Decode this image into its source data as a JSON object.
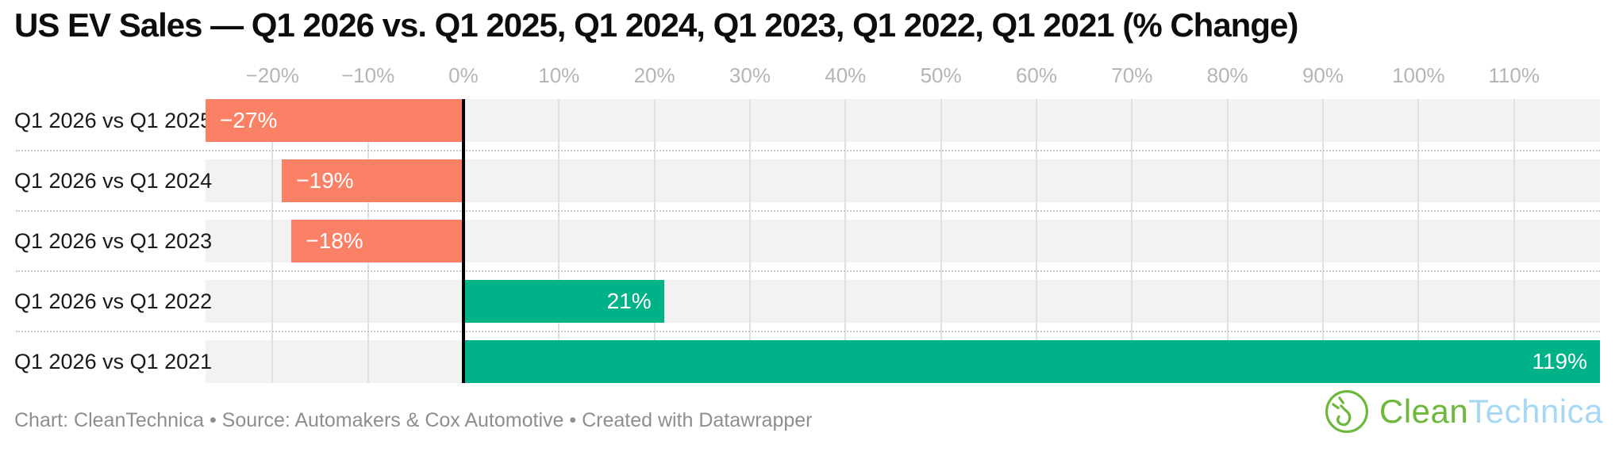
{
  "chart_data": {
    "type": "bar",
    "orientation": "horizontal",
    "title": "US EV Sales — Q1 2026 vs. Q1 2025, Q1 2024, Q1 2023, Q1 2022, Q1 2021 (% Change)",
    "categories": [
      "Q1 2026 vs Q1 2025",
      "Q1 2026 vs Q1 2024",
      "Q1 2026 vs Q1 2023",
      "Q1 2026 vs Q1 2022",
      "Q1 2026 vs Q1 2021"
    ],
    "values": [
      -27,
      -19,
      -18,
      21,
      119
    ],
    "bar_labels": [
      "−27%",
      "−19%",
      "−18%",
      "21%",
      "119%"
    ],
    "x_ticks": [
      {
        "value": -20,
        "label": "−20%"
      },
      {
        "value": -10,
        "label": "−10%"
      },
      {
        "value": 0,
        "label": "0%"
      },
      {
        "value": 10,
        "label": "10%"
      },
      {
        "value": 20,
        "label": "20%"
      },
      {
        "value": 30,
        "label": "30%"
      },
      {
        "value": 40,
        "label": "40%"
      },
      {
        "value": 50,
        "label": "50%"
      },
      {
        "value": 60,
        "label": "60%"
      },
      {
        "value": 70,
        "label": "70%"
      },
      {
        "value": 80,
        "label": "80%"
      },
      {
        "value": 90,
        "label": "90%"
      },
      {
        "value": 100,
        "label": "100%"
      },
      {
        "value": 110,
        "label": "110%"
      }
    ],
    "xlim": [
      -27,
      119
    ],
    "grid": true,
    "legend": "none",
    "colors": {
      "negative": "#fa8066",
      "positive": "#00b287",
      "row_background": "#f2f2f2",
      "gridline": "#e0e0e0",
      "zero_line": "#000000"
    }
  },
  "footer": {
    "text": "Chart: CleanTechnica • Source: Automakers & Cox Automotive • Created with Datawrapper"
  },
  "logo": {
    "name": "CleanTechnica",
    "part1": "Clean",
    "part2": "Technica",
    "green": "#6cb83b",
    "blue": "#a6d7f4"
  }
}
